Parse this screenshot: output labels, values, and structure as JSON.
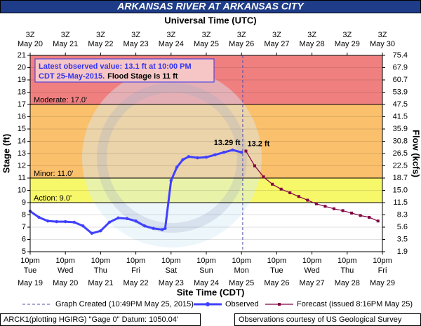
{
  "title": "ARKANSAS RIVER AT ARKANSAS CITY",
  "top_axis_title": "Universal Time (UTC)",
  "chart_data": {
    "type": "line",
    "ylabel": "Stage (ft)",
    "y2label": "Flow (kcfs)",
    "xlabel": "Site Time (CDT)",
    "xlim": [
      "2015-05-19T22:00",
      "2015-05-29T22:00"
    ],
    "ylim": [
      5,
      21
    ],
    "yticks": [
      5,
      6,
      7,
      8,
      9,
      10,
      11,
      12,
      13,
      14,
      15,
      16,
      17,
      18,
      19,
      20,
      21
    ],
    "y2ticks": [
      1.9,
      3.5,
      5.6,
      8.3,
      11.5,
      {
        "value": 15,
        "label": "15.0"
      },
      18.7,
      22.5,
      26.5,
      30.8,
      35.9,
      41.5,
      47.5,
      53.9,
      60.7,
      67.9,
      75.4
    ],
    "xticks": [
      {
        "value": "2015-05-19T22:00",
        "label": "10pm"
      },
      {
        "value": "2015-05-20T22:00",
        "label": "10pm"
      },
      {
        "value": "2015-05-21T22:00",
        "label": "10pm"
      },
      {
        "value": "2015-05-22T22:00",
        "label": "10pm"
      },
      {
        "value": "2015-05-23T22:00",
        "label": "10pm"
      },
      {
        "value": "2015-05-24T22:00",
        "label": "10pm"
      },
      {
        "value": "2015-05-25T22:00",
        "label": "10pm"
      },
      {
        "value": "2015-05-26T22:00",
        "label": "10pm"
      },
      {
        "value": "2015-05-27T22:00",
        "label": "10pm"
      },
      {
        "value": "2015-05-28T22:00",
        "label": "10pm"
      },
      {
        "value": "2015-05-29T22:00",
        "label": "10pm"
      }
    ],
    "xtick_days": [
      "Tue",
      "Wed",
      "Thu",
      "Fri",
      "Sat",
      "Sun",
      "Mon",
      "Tue",
      "Wed",
      "Thu",
      "Fri"
    ],
    "xtick_dates": [
      "May 19",
      "May 20",
      "May 21",
      "May 22",
      "May 23",
      "May 24",
      "May 25",
      "May 26",
      "May 27",
      "May 28",
      "May 29"
    ],
    "top_ticks": [
      "3Z",
      "3Z",
      "3Z",
      "3Z",
      "3Z",
      "3Z",
      "3Z",
      "3Z",
      "3Z",
      "3Z",
      "3Z"
    ],
    "top_dates": [
      "May 20",
      "May 21",
      "May 22",
      "May 23",
      "May 24",
      "May 25",
      "May 26",
      "May 27",
      "May 28",
      "May 29",
      "May 30"
    ],
    "grid": true,
    "thresholds": [
      {
        "label": "Action: 9.0'",
        "value": 9,
        "color": "#f7f76a"
      },
      {
        "label": "Minor: 11.0'",
        "value": 11,
        "color": "#fbc06c"
      },
      {
        "label": "Moderate: 17.0'",
        "value": 17,
        "color": "#f08080"
      }
    ],
    "series": [
      {
        "name": "Observed",
        "color": "#4040ff",
        "x": [
          "2015-05-19T22:00",
          "2015-05-20T04:00",
          "2015-05-20T10:00",
          "2015-05-20T16:00",
          "2015-05-20T22:00",
          "2015-05-21T04:00",
          "2015-05-21T10:00",
          "2015-05-21T16:00",
          "2015-05-21T22:00",
          "2015-05-22T04:00",
          "2015-05-22T10:00",
          "2015-05-22T16:00",
          "2015-05-22T22:00",
          "2015-05-23T04:00",
          "2015-05-23T10:00",
          "2015-05-23T16:00",
          "2015-05-23T18:00",
          "2015-05-23T22:00",
          "2015-05-24T02:00",
          "2015-05-24T06:00",
          "2015-05-24T10:00",
          "2015-05-24T16:00",
          "2015-05-24T22:00",
          "2015-05-25T04:00",
          "2015-05-25T10:00",
          "2015-05-25T16:00",
          "2015-05-25T22:00"
        ],
        "values": [
          8.3,
          7.8,
          7.5,
          7.45,
          7.45,
          7.4,
          7.1,
          6.5,
          6.7,
          7.4,
          7.75,
          7.7,
          7.5,
          7.1,
          6.9,
          6.8,
          6.9,
          10.8,
          11.9,
          12.5,
          12.75,
          12.65,
          12.7,
          12.9,
          13.1,
          13.29,
          13.1
        ]
      },
      {
        "name": "Forecast (issued 8:16PM May 25)",
        "color": "#800040",
        "x": [
          "2015-05-26T01:00",
          "2015-05-26T07:00",
          "2015-05-26T13:00",
          "2015-05-26T19:00",
          "2015-05-27T01:00",
          "2015-05-27T07:00",
          "2015-05-27T13:00",
          "2015-05-27T19:00",
          "2015-05-28T01:00",
          "2015-05-28T07:00",
          "2015-05-28T13:00",
          "2015-05-28T19:00",
          "2015-05-29T01:00",
          "2015-05-29T07:00",
          "2015-05-29T13:00",
          "2015-05-29T19:00"
        ],
        "values": [
          13.2,
          12.0,
          11.1,
          10.5,
          10.1,
          9.8,
          9.5,
          9.2,
          8.9,
          8.7,
          8.5,
          8.35,
          8.15,
          7.95,
          7.8,
          7.5
        ]
      }
    ],
    "annotations": [
      {
        "text": "13.29 ft",
        "x": "2015-05-25T16:00",
        "value": 13.29,
        "color": "#4040ff"
      },
      {
        "text": "13.2 ft",
        "x": "2015-05-26T01:00",
        "value": 13.2,
        "color": "#800040"
      }
    ],
    "created": {
      "label": "Graph Created (10:49PM May 25, 2015)",
      "x": "2015-05-25T22:49"
    },
    "info_box": {
      "line1": "Latest observed value: 13.1 ft at 10:00 PM",
      "line2": "CDT 25-May-2015.",
      "flood": "Flood Stage is 11 ft"
    }
  },
  "footer": {
    "left": "ARCK1(plotting HGIRG) \"Gage 0\" Datum: 1050.04'",
    "right": "Observations courtesy of US Geological Survey"
  }
}
